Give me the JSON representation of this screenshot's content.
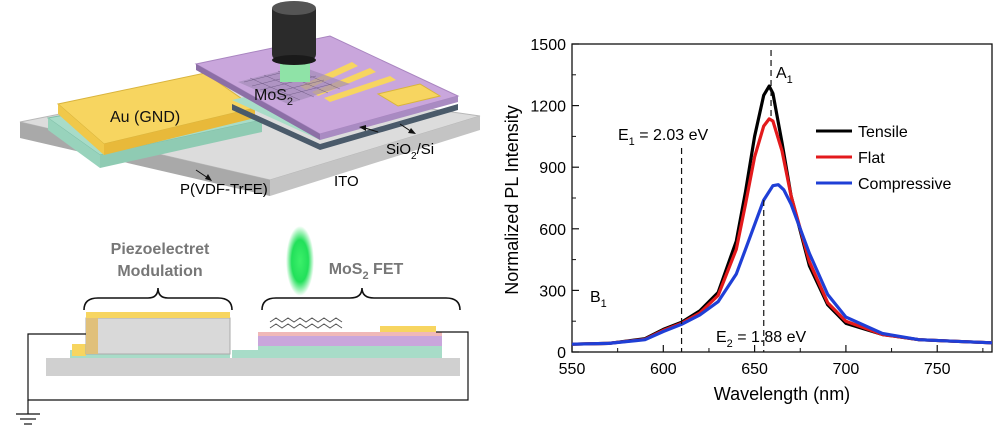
{
  "schematic": {
    "labels": {
      "au_gnd": "Au (GND)",
      "mos2_main": "MoS",
      "mos2_sub": "2",
      "pvdf": "P(VDF-TrFE)",
      "ito": "ITO",
      "sio2_a": "SiO",
      "sio2_sub": "2",
      "sio2_b": "/Si",
      "piezo_line1": "Piezoelectret",
      "piezo_line2": "Modulation",
      "fet_a": "MoS",
      "fet_sub": "2",
      "fet_b": " FET"
    },
    "colors": {
      "gold": "#f7d560",
      "purple": "#c9a6dc",
      "teal": "#a8dcc8",
      "substrate": "#d9d9d9",
      "laser": "#22e05a"
    }
  },
  "chart_data": {
    "type": "line",
    "xlabel": "Wavelength (nm)",
    "ylabel": "Normalized PL Intensity",
    "xlim": [
      550,
      780
    ],
    "ylim": [
      0,
      1500
    ],
    "xticks": [
      550,
      600,
      650,
      700,
      750
    ],
    "yticks": [
      0,
      300,
      600,
      900,
      1200,
      1500
    ],
    "legend_position": "right",
    "series": [
      {
        "name": "Tensile",
        "color": "#000000",
        "x": [
          550,
          570,
          590,
          600,
          610,
          620,
          630,
          640,
          645,
          650,
          655,
          658,
          660,
          665,
          670,
          680,
          690,
          700,
          720,
          740,
          760,
          780
        ],
        "y": [
          38,
          42,
          65,
          110,
          145,
          200,
          290,
          540,
          780,
          1050,
          1250,
          1295,
          1260,
          1020,
          760,
          420,
          230,
          140,
          85,
          60,
          52,
          45
        ]
      },
      {
        "name": "Flat",
        "color": "#e31a1c",
        "x": [
          550,
          570,
          590,
          600,
          610,
          620,
          630,
          640,
          645,
          650,
          655,
          658,
          660,
          665,
          670,
          680,
          690,
          700,
          720,
          740,
          760,
          780
        ],
        "y": [
          38,
          42,
          62,
          105,
          140,
          190,
          275,
          500,
          720,
          950,
          1100,
          1135,
          1125,
          980,
          760,
          440,
          240,
          150,
          85,
          60,
          52,
          45
        ]
      },
      {
        "name": "Compressive",
        "color": "#1f3fd6",
        "x": [
          550,
          570,
          590,
          600,
          610,
          620,
          630,
          640,
          645,
          650,
          655,
          660,
          663,
          666,
          670,
          680,
          690,
          700,
          720,
          740,
          760,
          780
        ],
        "y": [
          38,
          42,
          60,
          100,
          135,
          180,
          245,
          380,
          500,
          620,
          740,
          810,
          815,
          790,
          720,
          480,
          280,
          170,
          90,
          60,
          52,
          45
        ]
      }
    ],
    "annotations": [
      {
        "text_main": "E",
        "text_sub": "1",
        "text_rest": " = 2.03 eV",
        "line_x": 610
      },
      {
        "text_main": "E",
        "text_sub": "2",
        "text_rest": " = 1.88 eV",
        "line_x": 655
      },
      {
        "text_main": "A",
        "text_sub": "1",
        "line_x": 659
      },
      {
        "text_main": "B",
        "text_sub": "1"
      }
    ]
  }
}
